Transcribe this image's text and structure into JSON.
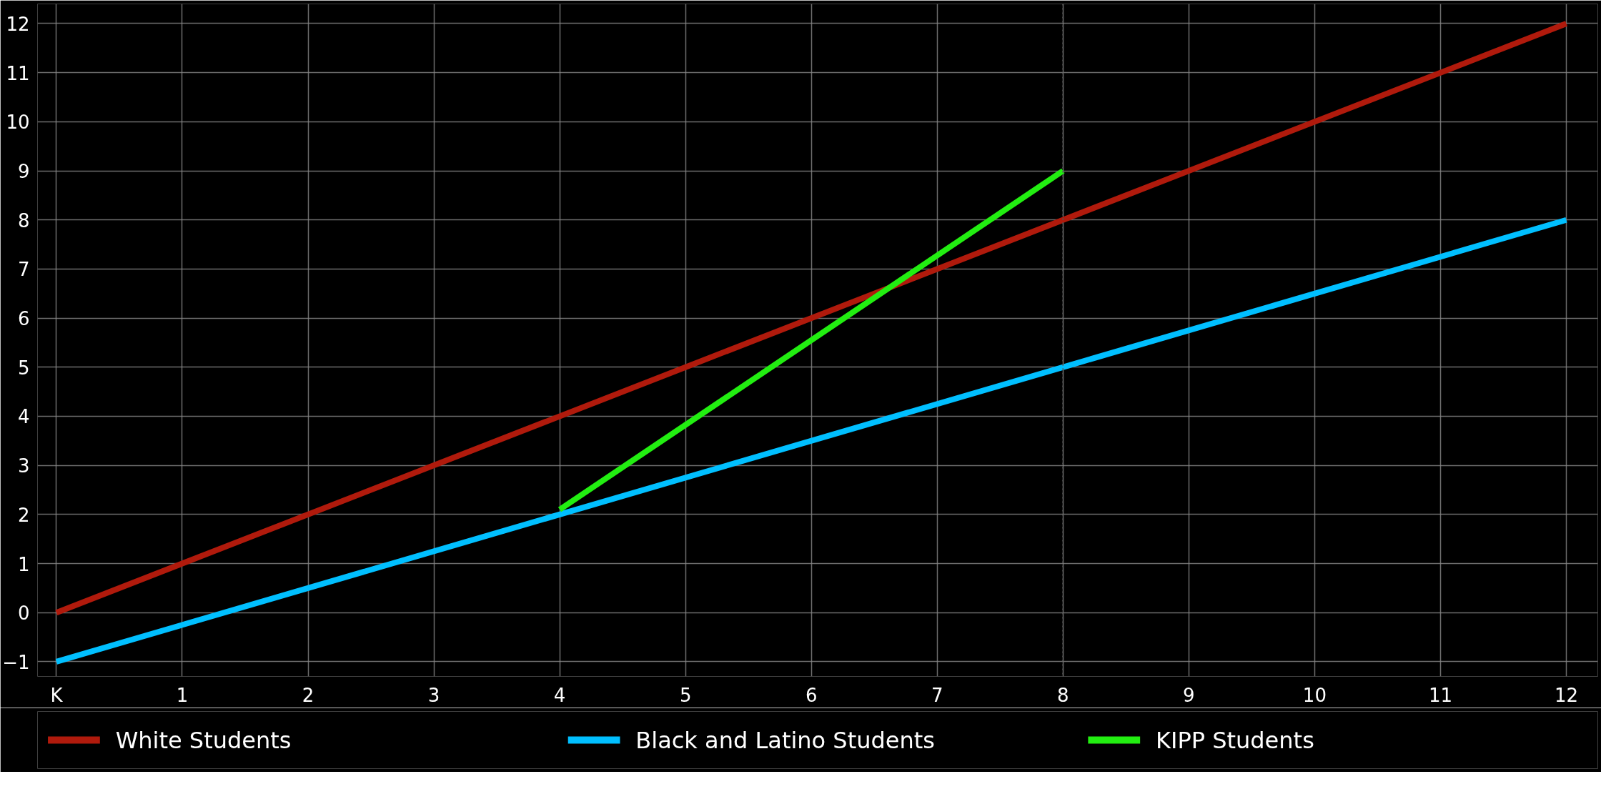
{
  "chart_data": {
    "type": "line",
    "xlim": [
      -0.15,
      12.25
    ],
    "ylim": [
      -1.3,
      12.4
    ],
    "xticks": [
      {
        "value": 0,
        "label": "K"
      },
      1,
      2,
      3,
      4,
      5,
      6,
      7,
      8,
      9,
      10,
      11,
      12
    ],
    "yticks": [
      -1,
      0,
      1,
      2,
      3,
      4,
      5,
      6,
      7,
      8,
      9,
      10,
      11,
      12
    ],
    "series": [
      {
        "name": "White Students",
        "color": "#b01a0c",
        "x": [
          0,
          12
        ],
        "values": [
          0,
          12
        ]
      },
      {
        "name": "Black and Latino Students",
        "color": "#00bfff",
        "x": [
          0,
          12
        ],
        "values": [
          -1,
          8
        ]
      },
      {
        "name": "KIPP Students",
        "color": "#22ee11",
        "x": [
          4,
          8
        ],
        "values": [
          2.1,
          9
        ]
      }
    ],
    "ref_lines": [
      {
        "axis": "x",
        "value": 8,
        "color": "#555555",
        "line_style": "dotted"
      }
    ],
    "grid": true,
    "legend": "bottom",
    "marker": "none",
    "line_style": "solid"
  }
}
